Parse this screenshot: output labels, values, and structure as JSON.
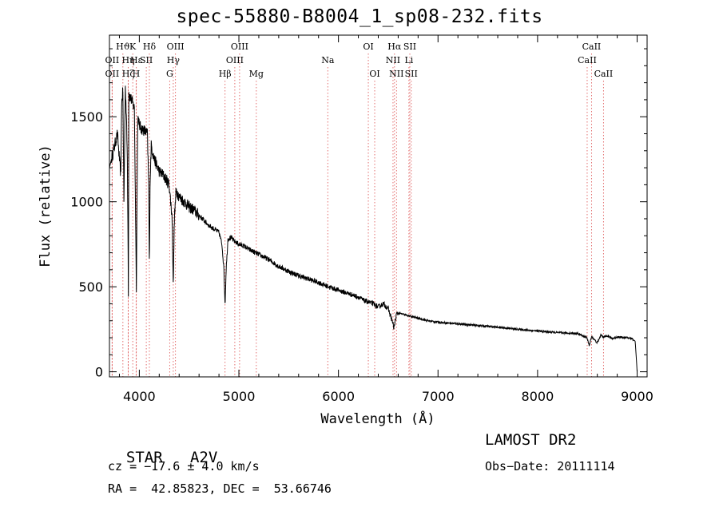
{
  "chart_data": {
    "type": "line",
    "title": "spec-55880-B8004_1_sp08-232.fits",
    "xlabel": "Wavelength (Å)",
    "ylabel": "Flux (relative)",
    "xlim": [
      3700,
      9100
    ],
    "ylim": [
      -30,
      1980
    ],
    "xticks": [
      4000,
      5000,
      6000,
      7000,
      8000,
      9000
    ],
    "yticks": [
      0,
      500,
      1000,
      1500
    ],
    "series": [
      {
        "x": [
          3700,
          3720,
          3740,
          3760,
          3780,
          3800,
          3815,
          3820,
          3825,
          3835,
          3845,
          3860,
          3870,
          3880,
          3885,
          3890,
          3895,
          3905,
          3920,
          3950,
          3965,
          3970,
          3975,
          3985,
          4000,
          4020,
          4050,
          4080,
          4095,
          4101,
          4107,
          4120,
          4150,
          4200,
          4250,
          4300,
          4330,
          4341,
          4352,
          4370,
          4400,
          4450,
          4500,
          4550,
          4600,
          4650,
          4700,
          4750,
          4800,
          4830,
          4850,
          4861,
          4872,
          4890,
          4920,
          4950,
          5000,
          5050,
          5100,
          5200,
          5300,
          5400,
          5500,
          5600,
          5700,
          5800,
          5900,
          6000,
          6100,
          6200,
          6250,
          6300,
          6350,
          6400,
          6450,
          6500,
          6540,
          6556,
          6563,
          6570,
          6585,
          6600,
          6700,
          6800,
          6900,
          7000,
          7200,
          7400,
          7600,
          7800,
          8000,
          8200,
          8400,
          8498,
          8520,
          8542,
          8560,
          8600,
          8640,
          8662,
          8690,
          8750,
          8800,
          8900,
          8950,
          8980,
          8995,
          9000
        ],
        "y": [
          1200,
          1250,
          1300,
          1350,
          1400,
          1250,
          1150,
          1500,
          1600,
          1650,
          1000,
          1680,
          1500,
          1250,
          900,
          470,
          1650,
          1620,
          1600,
          1550,
          800,
          500,
          900,
          1500,
          1450,
          1430,
          1420,
          1400,
          1100,
          560,
          1100,
          1330,
          1250,
          1180,
          1150,
          1100,
          900,
          510,
          900,
          1070,
          1030,
          1000,
          970,
          950,
          920,
          890,
          860,
          840,
          820,
          750,
          600,
          390,
          600,
          780,
          790,
          770,
          750,
          740,
          720,
          690,
          660,
          620,
          590,
          565,
          545,
          525,
          500,
          480,
          460,
          440,
          420,
          410,
          400,
          380,
          400,
          370,
          300,
          260,
          270,
          300,
          340,
          345,
          330,
          315,
          300,
          292,
          282,
          272,
          262,
          250,
          240,
          230,
          225,
          200,
          150,
          210,
          195,
          170,
          220,
          200,
          215,
          195,
          205,
          200,
          195,
          180,
          50,
          0
        ],
        "noise": [
          {
            "from": 3700,
            "to": 4600,
            "amp": 35
          },
          {
            "from": 4600,
            "to": 6600,
            "amp": 15
          },
          {
            "from": 6600,
            "to": 9000,
            "amp": 6
          }
        ]
      }
    ],
    "lines": [
      {
        "label": "Hδ",
        "wave": 4101,
        "row": 0
      },
      {
        "label": "Hϑ",
        "wave": 3835,
        "row": 0
      },
      {
        "label": "K",
        "wave": 3934,
        "row": 0
      },
      {
        "label": "OIII",
        "wave": 4363,
        "row": 0
      },
      {
        "label": "OIII",
        "wave": 5007,
        "row": 0
      },
      {
        "label": "OI",
        "wave": 6300,
        "row": 0
      },
      {
        "label": "Hα",
        "wave": 6563,
        "row": 0
      },
      {
        "label": "SII",
        "wave": 6717,
        "row": 0
      },
      {
        "label": "CaII",
        "wave": 8542,
        "row": 0
      },
      {
        "label": "OII",
        "wave": 3727,
        "row": 1
      },
      {
        "label": "Hη",
        "wave": 3889,
        "row": 1
      },
      {
        "label": "Hε",
        "wave": 3970,
        "row": 1
      },
      {
        "label": "SII",
        "wave": 4070,
        "row": 1
      },
      {
        "label": "Hγ",
        "wave": 4341,
        "row": 1
      },
      {
        "label": "OIII",
        "wave": 4959,
        "row": 1
      },
      {
        "label": "Na",
        "wave": 5893,
        "row": 1
      },
      {
        "label": "NII",
        "wave": 6548,
        "row": 1
      },
      {
        "label": "Li",
        "wave": 6708,
        "row": 1
      },
      {
        "label": "CaII",
        "wave": 8498,
        "row": 1
      },
      {
        "label": "OII",
        "wave": 3727,
        "row": 2
      },
      {
        "label": "Hζ",
        "wave": 3889,
        "row": 2
      },
      {
        "label": "H",
        "wave": 3968,
        "row": 2
      },
      {
        "label": "G",
        "wave": 4305,
        "row": 2
      },
      {
        "label": "Hβ",
        "wave": 4861,
        "row": 2
      },
      {
        "label": "Mg",
        "wave": 5175,
        "row": 2
      },
      {
        "label": "OI",
        "wave": 6364,
        "row": 2
      },
      {
        "label": "NII",
        "wave": 6583,
        "row": 2
      },
      {
        "label": "SII",
        "wave": 6731,
        "row": 2
      },
      {
        "label": "CaII",
        "wave": 8662,
        "row": 2
      }
    ],
    "line_color": "#e06060",
    "series_color": "#000000"
  },
  "info": {
    "class_label": "STAR",
    "subclass": "A2V",
    "cz": "cz = −17.6 ± 4.0 km/s",
    "coords": "RA =  42.85823, DEC =  53.66746",
    "survey": "LAMOST DR2",
    "obs_date": "Obs−Date: 20111114"
  }
}
